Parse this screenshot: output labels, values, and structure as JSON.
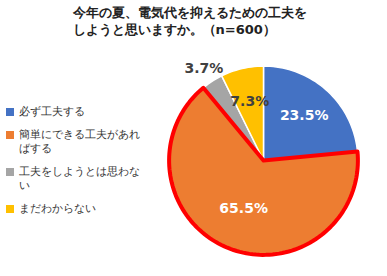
{
  "chart_data": {
    "type": "pie",
    "title": "今年の夏、電気代を抑えるための工夫をしようと思いますか。（n=600）",
    "categories": [
      "必ず工夫する",
      "簡単にできる工夫があればする",
      "工夫をしようとは思わない",
      "まだわからない"
    ],
    "values": [
      23.5,
      65.5,
      3.7,
      7.3
    ],
    "value_labels": [
      "23.5%",
      "65.5%",
      "3.7%",
      "7.3%"
    ],
    "colors": [
      "#4472C4",
      "#ED7D31",
      "#A5A5A5",
      "#FFC000"
    ],
    "data_labels": true,
    "legend": "left"
  }
}
